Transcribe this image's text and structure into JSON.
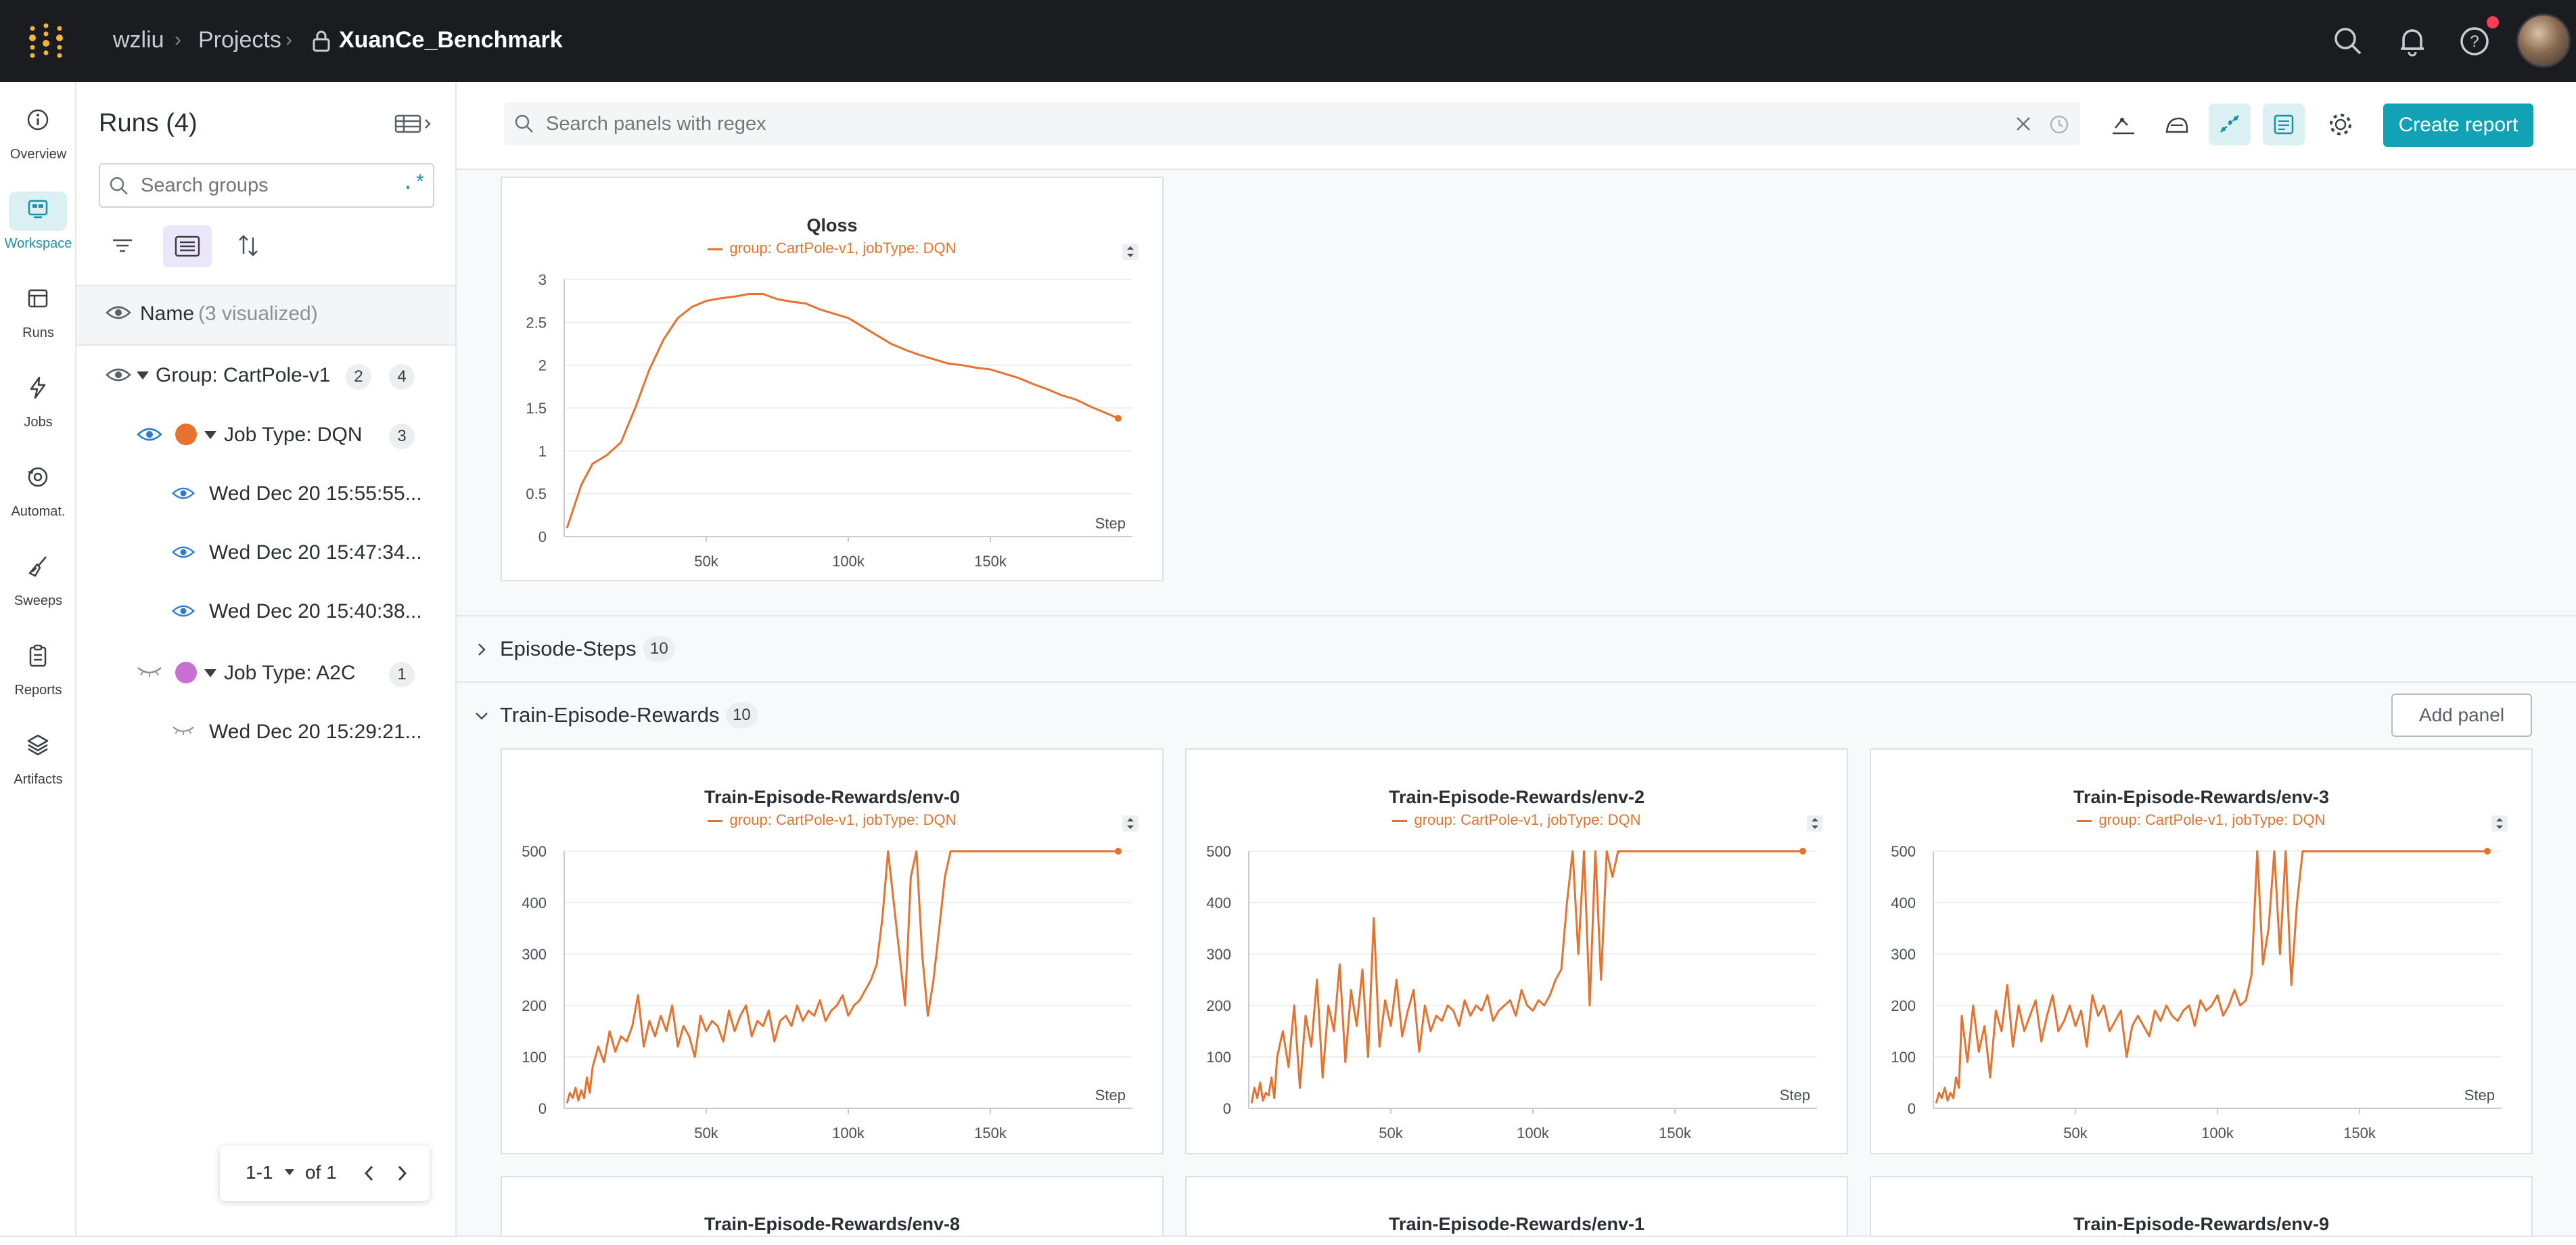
{
  "header": {
    "user": "wzliu",
    "projects": "Projects",
    "project": "XuanCe_Benchmark"
  },
  "nav": [
    {
      "label": "Overview",
      "icon": "info-icon"
    },
    {
      "label": "Workspace",
      "icon": "workspace-icon"
    },
    {
      "label": "Runs",
      "icon": "table-icon"
    },
    {
      "label": "Jobs",
      "icon": "lightning-icon"
    },
    {
      "label": "Automat.",
      "icon": "automation-icon"
    },
    {
      "label": "Sweeps",
      "icon": "broom-icon"
    },
    {
      "label": "Reports",
      "icon": "clipboard-icon"
    },
    {
      "label": "Artifacts",
      "icon": "layers-icon"
    }
  ],
  "runs": {
    "title": "Runs (4)",
    "search_placeholder": "Search groups",
    "regex_label": ".*",
    "name_header": "Name",
    "name_sub": "(3 visualized)",
    "group": {
      "label": "Group: CartPole-v1",
      "count_a": "2",
      "count_b": "4"
    },
    "job_dqn": {
      "label": "Job Type: DQN",
      "count": "3",
      "color": "#e5722e"
    },
    "dqn_runs": [
      "Wed Dec 20 15:55:55...",
      "Wed Dec 20 15:47:34...",
      "Wed Dec 20 15:40:38..."
    ],
    "job_a2c": {
      "label": "Job Type: A2C",
      "count": "1",
      "color": "#c86fd2"
    },
    "a2c_runs": [
      "Wed Dec 20 15:29:21..."
    ],
    "pagination": {
      "range": "1-1",
      "of": "of 1"
    }
  },
  "toolbar": {
    "search_placeholder": "Search panels with regex",
    "create_report": "Create report"
  },
  "sections": {
    "episode_steps": {
      "title": "Episode-Steps",
      "count": "10"
    },
    "train_rewards": {
      "title": "Train-Episode-Rewards",
      "count": "10",
      "add_panel": "Add panel"
    }
  },
  "legend_text": "group: CartPole-v1, jobType: DQN",
  "bottom_titles": [
    "Train-Episode-Rewards/env-8",
    "Train-Episode-Rewards/env-1",
    "Train-Episode-Rewards/env-9"
  ],
  "chart_data": [
    {
      "type": "line",
      "title": "Qloss",
      "xlabel": "Step",
      "ylabel": "",
      "ylim": [
        0,
        3
      ],
      "xlim": [
        0,
        200000
      ],
      "yticks": [
        0,
        0.5,
        1,
        1.5,
        2,
        2.5,
        3
      ],
      "xticks": [
        50000,
        100000,
        150000
      ],
      "xtick_labels": [
        "50k",
        "100k",
        "150k"
      ],
      "series": [
        {
          "name": "group: CartPole-v1, jobType: DQN",
          "color": "#e5722e",
          "x": [
            1000,
            3000,
            6000,
            10000,
            15000,
            20000,
            25000,
            30000,
            35000,
            40000,
            45000,
            50000,
            55000,
            60000,
            65000,
            70000,
            75000,
            80000,
            85000,
            90000,
            95000,
            100000,
            105000,
            110000,
            115000,
            120000,
            125000,
            130000,
            135000,
            140000,
            145000,
            150000,
            155000,
            160000,
            165000,
            170000,
            175000,
            180000,
            185000,
            190000,
            195000
          ],
          "y": [
            0.1,
            0.3,
            0.6,
            0.85,
            0.95,
            1.1,
            1.5,
            1.95,
            2.3,
            2.55,
            2.68,
            2.75,
            2.78,
            2.8,
            2.83,
            2.83,
            2.77,
            2.74,
            2.72,
            2.65,
            2.6,
            2.55,
            2.45,
            2.35,
            2.25,
            2.18,
            2.12,
            2.07,
            2.02,
            2.0,
            1.97,
            1.95,
            1.9,
            1.85,
            1.78,
            1.72,
            1.65,
            1.6,
            1.52,
            1.45,
            1.38
          ]
        }
      ]
    },
    {
      "type": "line",
      "title": "Train-Episode-Rewards/env-0",
      "xlabel": "Step",
      "ylim": [
        0,
        500
      ],
      "xlim": [
        0,
        200000
      ],
      "yticks": [
        0,
        100,
        200,
        300,
        400,
        500
      ],
      "xticks": [
        50000,
        100000,
        150000
      ],
      "xtick_labels": [
        "50k",
        "100k",
        "150k"
      ],
      "series": [
        {
          "name": "group: CartPole-v1, jobType: DQN",
          "color": "#e5722e",
          "x": [
            1000,
            2000,
            3000,
            4000,
            5000,
            6000,
            7000,
            8000,
            9000,
            10000,
            12000,
            14000,
            16000,
            18000,
            20000,
            22000,
            24000,
            26000,
            28000,
            30000,
            32000,
            34000,
            36000,
            38000,
            40000,
            42000,
            44000,
            46000,
            48000,
            50000,
            52000,
            54000,
            56000,
            58000,
            60000,
            62000,
            64000,
            66000,
            68000,
            70000,
            72000,
            74000,
            76000,
            78000,
            80000,
            82000,
            84000,
            86000,
            88000,
            90000,
            92000,
            94000,
            96000,
            98000,
            100000,
            102000,
            104000,
            106000,
            108000,
            110000,
            112000,
            114000,
            116000,
            118000,
            120000,
            122000,
            124000,
            126000,
            128000,
            130000,
            132000,
            134000,
            136000,
            138000,
            140000,
            142000,
            145000,
            150000,
            160000,
            170000,
            180000,
            190000,
            195000
          ],
          "y": [
            10,
            30,
            20,
            40,
            15,
            35,
            20,
            60,
            30,
            80,
            120,
            90,
            150,
            110,
            140,
            130,
            160,
            220,
            120,
            170,
            140,
            180,
            150,
            200,
            120,
            160,
            140,
            100,
            180,
            150,
            170,
            160,
            130,
            190,
            150,
            180,
            200,
            140,
            170,
            160,
            190,
            130,
            170,
            180,
            160,
            200,
            170,
            190,
            180,
            210,
            170,
            190,
            200,
            220,
            180,
            200,
            210,
            230,
            250,
            280,
            370,
            500,
            400,
            300,
            200,
            450,
            500,
            300,
            180,
            250,
            350,
            450,
            500,
            500,
            500,
            500,
            500,
            500,
            500,
            500,
            500,
            500,
            500
          ]
        }
      ]
    },
    {
      "type": "line",
      "title": "Train-Episode-Rewards/env-2",
      "xlabel": "Step",
      "ylim": [
        0,
        500
      ],
      "xlim": [
        0,
        200000
      ],
      "yticks": [
        0,
        100,
        200,
        300,
        400,
        500
      ],
      "xticks": [
        50000,
        100000,
        150000
      ],
      "xtick_labels": [
        "50k",
        "100k",
        "150k"
      ],
      "series": [
        {
          "name": "group: CartPole-v1, jobType: DQN",
          "color": "#e5722e",
          "x": [
            1000,
            2000,
            3000,
            4000,
            5000,
            6000,
            7000,
            8000,
            9000,
            10000,
            12000,
            14000,
            16000,
            18000,
            20000,
            22000,
            24000,
            26000,
            28000,
            30000,
            32000,
            34000,
            36000,
            38000,
            40000,
            42000,
            44000,
            46000,
            48000,
            50000,
            52000,
            54000,
            56000,
            58000,
            60000,
            62000,
            64000,
            66000,
            68000,
            70000,
            72000,
            74000,
            76000,
            78000,
            80000,
            82000,
            84000,
            86000,
            88000,
            90000,
            92000,
            94000,
            96000,
            98000,
            100000,
            102000,
            104000,
            106000,
            108000,
            110000,
            112000,
            114000,
            116000,
            118000,
            120000,
            122000,
            124000,
            126000,
            128000,
            130000,
            132000,
            134000,
            136000,
            138000,
            140000,
            145000,
            150000,
            160000,
            170000,
            180000,
            190000,
            195000
          ],
          "y": [
            10,
            40,
            20,
            50,
            15,
            30,
            25,
            60,
            20,
            100,
            150,
            80,
            200,
            40,
            180,
            120,
            250,
            60,
            200,
            150,
            280,
            90,
            230,
            160,
            270,
            100,
            370,
            120,
            210,
            160,
            250,
            140,
            190,
            230,
            110,
            200,
            150,
            180,
            170,
            200,
            190,
            160,
            210,
            180,
            200,
            190,
            220,
            170,
            190,
            200,
            210,
            180,
            230,
            200,
            190,
            210,
            200,
            220,
            250,
            270,
            400,
            500,
            300,
            500,
            200,
            500,
            250,
            500,
            450,
            500,
            500,
            500,
            500,
            500,
            500,
            500,
            500,
            500,
            500,
            500,
            500,
            500
          ]
        }
      ]
    },
    {
      "type": "line",
      "title": "Train-Episode-Rewards/env-3",
      "xlabel": "Step",
      "ylim": [
        0,
        500
      ],
      "xlim": [
        0,
        200000
      ],
      "yticks": [
        0,
        100,
        200,
        300,
        400,
        500
      ],
      "xticks": [
        50000,
        100000,
        150000
      ],
      "xtick_labels": [
        "50k",
        "100k",
        "150k"
      ],
      "series": [
        {
          "name": "group: CartPole-v1, jobType: DQN",
          "color": "#e5722e",
          "x": [
            1000,
            2000,
            3000,
            4000,
            5000,
            6000,
            7000,
            8000,
            9000,
            10000,
            12000,
            14000,
            16000,
            18000,
            20000,
            22000,
            24000,
            26000,
            28000,
            30000,
            32000,
            34000,
            36000,
            38000,
            40000,
            42000,
            44000,
            46000,
            48000,
            50000,
            52000,
            54000,
            56000,
            58000,
            60000,
            62000,
            64000,
            66000,
            68000,
            70000,
            72000,
            74000,
            76000,
            78000,
            80000,
            82000,
            84000,
            86000,
            88000,
            90000,
            92000,
            94000,
            96000,
            98000,
            100000,
            102000,
            104000,
            106000,
            108000,
            110000,
            112000,
            114000,
            116000,
            118000,
            120000,
            122000,
            124000,
            126000,
            128000,
            130000,
            132000,
            134000,
            136000,
            138000,
            140000,
            145000,
            150000,
            160000,
            170000,
            180000,
            190000,
            195000
          ],
          "y": [
            10,
            30,
            20,
            40,
            15,
            30,
            20,
            60,
            40,
            180,
            90,
            200,
            110,
            160,
            60,
            190,
            150,
            240,
            120,
            200,
            150,
            180,
            210,
            130,
            180,
            220,
            150,
            170,
            200,
            160,
            190,
            120,
            220,
            180,
            200,
            150,
            170,
            190,
            100,
            160,
            180,
            160,
            140,
            190,
            170,
            200,
            180,
            170,
            190,
            200,
            160,
            210,
            190,
            200,
            220,
            180,
            200,
            230,
            200,
            210,
            260,
            500,
            280,
            350,
            500,
            300,
            500,
            240,
            400,
            500,
            500,
            500,
            500,
            500,
            500,
            500,
            500,
            500,
            500,
            500,
            500,
            500
          ]
        }
      ]
    }
  ]
}
